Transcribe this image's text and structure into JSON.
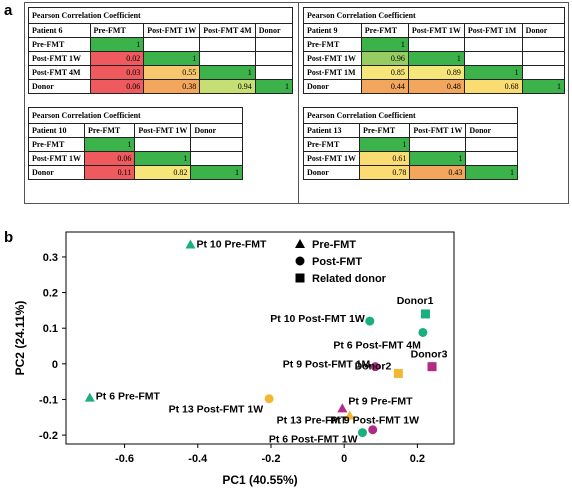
{
  "panel_a_label": "a",
  "panel_b_label": "b",
  "tables": [
    {
      "title": "Pearson Correlation Coefficient",
      "patient": "Patient 6",
      "columns": [
        "Pre-FMT",
        "Post-FMT 1W",
        "Post-FMT 4M",
        "Donor"
      ],
      "rows": [
        {
          "label": "Pre-FMT",
          "values": [
            "1",
            "",
            "",
            ""
          ]
        },
        {
          "label": "Post-FMT 1W",
          "values": [
            "0.02",
            "1",
            "",
            ""
          ]
        },
        {
          "label": "Post-FMT 4M",
          "values": [
            "0.03",
            "0.55",
            "1",
            ""
          ]
        },
        {
          "label": "Donor",
          "values": [
            "0.06",
            "0.38",
            "0.94",
            "1"
          ]
        }
      ]
    },
    {
      "title": "Pearson Correlation Coefficient",
      "patient": "Patient 9",
      "columns": [
        "Pre-FMT",
        "Post-FMT 1W",
        "Post-FMT 1M",
        "Donor"
      ],
      "rows": [
        {
          "label": "Pre-FMT",
          "values": [
            "1",
            "",
            "",
            ""
          ]
        },
        {
          "label": "Post-FMT 1W",
          "values": [
            "0.96",
            "1",
            "",
            ""
          ]
        },
        {
          "label": "Post-FMT 1M",
          "values": [
            "0.85",
            "0.89",
            "1",
            ""
          ]
        },
        {
          "label": "Donor",
          "values": [
            "0.44",
            "0.48",
            "0.68",
            "1"
          ]
        }
      ]
    },
    {
      "title": "Pearson Correlation Coefficient",
      "patient": "Patient 10",
      "columns": [
        "Pre-FMT",
        "Post-FMT 1W",
        "Donor"
      ],
      "rows": [
        {
          "label": "Pre-FMT",
          "values": [
            "1",
            "",
            ""
          ]
        },
        {
          "label": "Post-FMT 1W",
          "values": [
            "0.06",
            "1",
            ""
          ]
        },
        {
          "label": "Donor",
          "values": [
            "0.11",
            "0.82",
            "1"
          ]
        }
      ]
    },
    {
      "title": "Pearson Correlation Coefficient",
      "patient": "Patient 13",
      "columns": [
        "Pre-FMT",
        "Post-FMT 1W",
        "Donor"
      ],
      "rows": [
        {
          "label": "Pre-FMT",
          "values": [
            "1",
            "",
            ""
          ]
        },
        {
          "label": "Post-FMT 1W",
          "values": [
            "0.61",
            "1",
            ""
          ]
        },
        {
          "label": "Donor",
          "values": [
            "0.78",
            "0.43",
            "1"
          ]
        }
      ]
    }
  ],
  "chart_data": {
    "type": "scatter",
    "xlabel": "PC1 (40.55%)",
    "ylabel": "PC2 (24.11%)",
    "xlim": [
      -0.76,
      0.3
    ],
    "ylim": [
      -0.225,
      0.37
    ],
    "xticks": [
      -0.6,
      -0.4,
      -0.2,
      0.0,
      0.2
    ],
    "xtick_labels": [
      "-0.6",
      "-0.4",
      "-0.2",
      "0",
      "0.2"
    ],
    "yticks": [
      -0.2,
      -0.1,
      0.0,
      0.1,
      0.2,
      0.3
    ],
    "ytick_labels": [
      "-0.2",
      "-0.1",
      "0",
      "0.1",
      "0.2",
      "0.3"
    ],
    "legend": [
      {
        "label": "Pre-FMT",
        "marker": "triangle"
      },
      {
        "label": "Post-FMT",
        "marker": "circle"
      },
      {
        "label": "Related donor",
        "marker": "square"
      }
    ],
    "legend_position": "top-right",
    "colors": {
      "pt6": "#1ab07c",
      "pt9": "#b02a86",
      "pt10": "#1ab07c",
      "pt13": "#f2b830"
    },
    "points": [
      {
        "label": "Pt 10 Pre-FMT",
        "x": -0.42,
        "y": 0.335,
        "marker": "triangle",
        "color": "#1ab07c"
      },
      {
        "label": "Pt 6 Pre-FMT",
        "x": -0.695,
        "y": -0.095,
        "marker": "triangle",
        "color": "#1ab07c"
      },
      {
        "label": "Pt 10 Post-FMT 1W",
        "x": 0.07,
        "y": 0.12,
        "marker": "circle",
        "color": "#1ab07c"
      },
      {
        "label": "Pt 6 Post-FMT 4M",
        "x": 0.215,
        "y": 0.088,
        "marker": "circle",
        "color": "#1ab07c"
      },
      {
        "label": "Pt 9 Post-FMT 1M",
        "x": 0.085,
        "y": -0.008,
        "marker": "circle",
        "color": "#b02a86"
      },
      {
        "label": "Pt 13 Post-FMT 1W",
        "x": -0.205,
        "y": -0.098,
        "marker": "circle",
        "color": "#f2b830"
      },
      {
        "label": "Pt 9 Pre-FMT",
        "x": -0.005,
        "y": -0.125,
        "marker": "triangle",
        "color": "#b02a86"
      },
      {
        "label": "Pt 13 Pre-FMT",
        "x": 0.015,
        "y": -0.145,
        "marker": "triangle",
        "color": "#f2b830"
      },
      {
        "label": "Pt 9 Post-FMT 1W",
        "x": 0.078,
        "y": -0.185,
        "marker": "circle",
        "color": "#b02a86"
      },
      {
        "label": "Pt 6 Post-FMT 1W",
        "x": 0.05,
        "y": -0.193,
        "marker": "circle",
        "color": "#1ab07c"
      },
      {
        "label": "Donor1",
        "x": 0.222,
        "y": 0.14,
        "marker": "square",
        "color": "#1ab07c"
      },
      {
        "label": "Donor2",
        "x": 0.148,
        "y": -0.027,
        "marker": "square",
        "color": "#f2b830"
      },
      {
        "label": "Donor3",
        "x": 0.24,
        "y": -0.008,
        "marker": "square",
        "color": "#b02a86"
      }
    ]
  }
}
